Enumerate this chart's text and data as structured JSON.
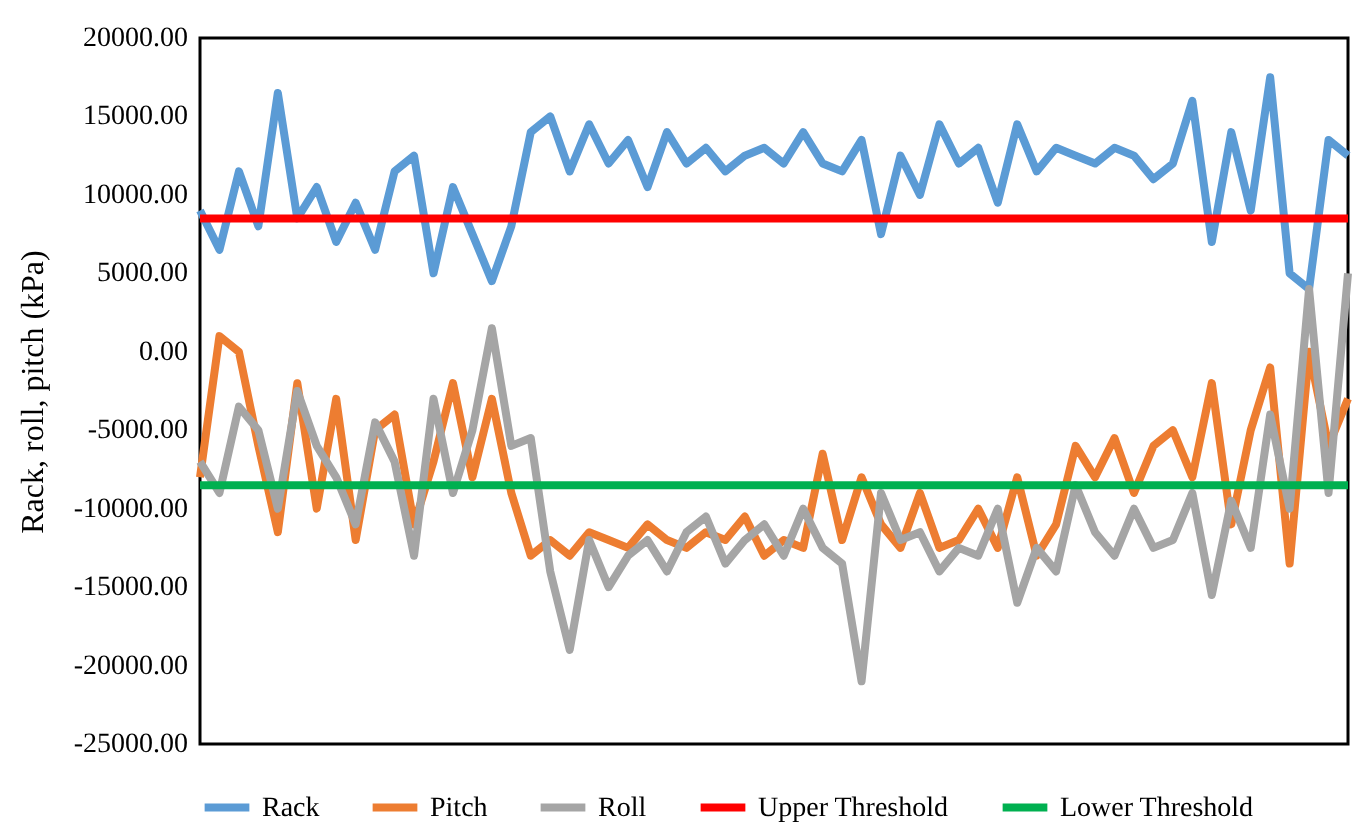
{
  "chart_data": {
    "type": "line",
    "ylabel": "Rack, roll, pitch (kPa)",
    "categories": [
      null,
      null,
      null,
      null,
      null,
      null,
      null,
      null,
      null,
      null,
      null,
      null,
      null,
      null,
      null,
      null,
      null,
      null,
      null,
      null,
      null,
      null,
      null,
      null,
      null,
      null,
      null,
      null,
      null,
      null,
      null,
      null,
      null,
      null,
      null,
      null,
      null,
      null,
      null,
      null,
      null,
      null,
      null,
      null,
      null,
      null,
      null,
      null,
      null,
      null,
      null,
      null,
      null,
      null,
      null,
      null,
      null,
      null,
      null,
      null
    ],
    "ylim": [
      -25000,
      20000
    ],
    "yticks": [
      {
        "value": -25000,
        "label": "-25000.00"
      },
      {
        "value": -20000,
        "label": "-20000.00"
      },
      {
        "value": -15000,
        "label": "-15000.00"
      },
      {
        "value": -10000,
        "label": "-10000.00"
      },
      {
        "value": -5000,
        "label": "-5000.00"
      },
      {
        "value": 0,
        "label": "0.00"
      },
      {
        "value": 5000,
        "label": "5000.00"
      },
      {
        "value": 10000,
        "label": "10000.00"
      },
      {
        "value": 15000,
        "label": "15000.00"
      },
      {
        "value": 20000,
        "label": "20000.00"
      }
    ],
    "tick_labels": "y",
    "grid": false,
    "legend": "bottom",
    "line_style": "solid",
    "series": [
      {
        "name": "Rack",
        "color": "#5b9bd5",
        "values": [
          9000,
          6500,
          11500,
          8000,
          16500,
          8500,
          10500,
          7000,
          9500,
          6500,
          11500,
          12500,
          5000,
          10500,
          7500,
          4500,
          8000,
          14000,
          15000,
          11500,
          14500,
          12000,
          13500,
          10500,
          14000,
          12000,
          13000,
          11500,
          12500,
          13000,
          12000,
          14000,
          12000,
          11500,
          13500,
          7500,
          12500,
          10000,
          14500,
          12000,
          13000,
          9500,
          14500,
          11500,
          13000,
          12500,
          12000,
          13000,
          12500,
          11000,
          12000,
          16000,
          7000,
          14000,
          9000,
          17500,
          5000,
          4000,
          13500,
          12500
        ]
      },
      {
        "name": "Pitch",
        "color": "#ed7d31",
        "values": [
          -8000,
          1000,
          0,
          -6000,
          -11500,
          -2000,
          -10000,
          -3000,
          -12000,
          -5000,
          -4000,
          -11000,
          -7000,
          -2000,
          -8000,
          -3000,
          -9000,
          -13000,
          -12000,
          -13000,
          -11500,
          -12000,
          -12500,
          -11000,
          -12000,
          -12500,
          -11500,
          -12000,
          -10500,
          -13000,
          -12000,
          -12500,
          -6500,
          -12000,
          -8000,
          -11000,
          -12500,
          -9000,
          -12500,
          -12000,
          -10000,
          -12500,
          -8000,
          -13000,
          -11000,
          -6000,
          -8000,
          -5500,
          -9000,
          -6000,
          -5000,
          -8000,
          -2000,
          -11000,
          -5000,
          -1000,
          -13500,
          0,
          -6000,
          -3000
        ]
      },
      {
        "name": "Roll",
        "color": "#a5a5a5",
        "values": [
          -7000,
          -9000,
          -3500,
          -5000,
          -10000,
          -2500,
          -6000,
          -8000,
          -11000,
          -4500,
          -7000,
          -13000,
          -3000,
          -9000,
          -5000,
          1500,
          -6000,
          -5500,
          -14000,
          -19000,
          -12000,
          -15000,
          -13000,
          -12000,
          -14000,
          -11500,
          -10500,
          -13500,
          -12000,
          -11000,
          -13000,
          -10000,
          -12500,
          -13500,
          -21000,
          -9000,
          -12000,
          -11500,
          -14000,
          -12500,
          -13000,
          -10000,
          -16000,
          -12500,
          -14000,
          -8500,
          -11500,
          -13000,
          -10000,
          -12500,
          -12000,
          -9000,
          -15500,
          -9500,
          -12500,
          -4000,
          -10000,
          4000,
          -9000,
          5000
        ]
      },
      {
        "name": "Upper Threshold",
        "color": "#ff0000",
        "values": [
          8500,
          8500,
          8500,
          8500,
          8500,
          8500,
          8500,
          8500,
          8500,
          8500,
          8500,
          8500,
          8500,
          8500,
          8500,
          8500,
          8500,
          8500,
          8500,
          8500,
          8500,
          8500,
          8500,
          8500,
          8500,
          8500,
          8500,
          8500,
          8500,
          8500,
          8500,
          8500,
          8500,
          8500,
          8500,
          8500,
          8500,
          8500,
          8500,
          8500,
          8500,
          8500,
          8500,
          8500,
          8500,
          8500,
          8500,
          8500,
          8500,
          8500,
          8500,
          8500,
          8500,
          8500,
          8500,
          8500,
          8500,
          8500,
          8500,
          8500
        ]
      },
      {
        "name": "Lower Threshold",
        "color": "#00b050",
        "values": [
          -8500,
          -8500,
          -8500,
          -8500,
          -8500,
          -8500,
          -8500,
          -8500,
          -8500,
          -8500,
          -8500,
          -8500,
          -8500,
          -8500,
          -8500,
          -8500,
          -8500,
          -8500,
          -8500,
          -8500,
          -8500,
          -8500,
          -8500,
          -8500,
          -8500,
          -8500,
          -8500,
          -8500,
          -8500,
          -8500,
          -8500,
          -8500,
          -8500,
          -8500,
          -8500,
          -8500,
          -8500,
          -8500,
          -8500,
          -8500,
          -8500,
          -8500,
          -8500,
          -8500,
          -8500,
          -8500,
          -8500,
          -8500,
          -8500,
          -8500,
          -8500,
          -8500,
          -8500,
          -8500,
          -8500,
          -8500,
          -8500,
          -8500,
          -8500,
          -8500
        ]
      }
    ]
  }
}
